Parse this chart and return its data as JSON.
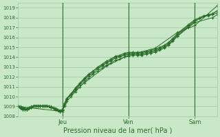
{
  "xlabel": "Pression niveau de la mer( hPa )",
  "bg_color": "#c8e8c8",
  "grid_color": "#a0c8a0",
  "line_color": "#2a6c2a",
  "ylim": [
    1008,
    1019.5
  ],
  "yticks": [
    1008,
    1009,
    1010,
    1011,
    1012,
    1013,
    1014,
    1015,
    1016,
    1017,
    1018,
    1019
  ],
  "vline_x": [
    0.222,
    0.555,
    0.888
  ],
  "figsize": [
    3.2,
    2.0
  ],
  "dpi": 100,
  "series": [
    {
      "x": [
        0.0,
        0.011,
        0.022,
        0.033,
        0.044,
        0.055,
        0.066,
        0.078,
        0.089,
        0.1,
        0.111,
        0.122,
        0.133,
        0.144,
        0.155,
        0.166,
        0.177,
        0.188,
        0.2,
        0.211,
        0.222,
        0.233,
        0.244,
        0.266,
        0.288,
        0.311,
        0.333,
        0.355,
        0.377,
        0.4,
        0.422,
        0.444,
        0.466,
        0.488,
        0.511,
        0.533,
        0.555,
        0.577,
        0.6,
        0.622,
        0.644,
        0.666,
        0.688,
        0.711,
        0.733,
        0.755,
        0.777,
        0.8,
        0.855,
        0.888,
        0.911,
        0.933,
        0.955,
        0.977,
        1.0
      ],
      "y": [
        1009.0,
        1008.9,
        1008.8,
        1008.7,
        1008.7,
        1008.8,
        1008.9,
        1009.0,
        1009.0,
        1009.0,
        1009.0,
        1009.0,
        1009.0,
        1009.0,
        1009.0,
        1008.9,
        1008.8,
        1008.7,
        1008.6,
        1008.5,
        1008.6,
        1009.2,
        1009.7,
        1010.2,
        1010.7,
        1011.2,
        1011.7,
        1012.1,
        1012.4,
        1012.8,
        1013.1,
        1013.4,
        1013.6,
        1013.9,
        1014.0,
        1014.2,
        1014.3,
        1014.3,
        1014.3,
        1014.3,
        1014.4,
        1014.5,
        1014.6,
        1014.8,
        1015.0,
        1015.3,
        1015.7,
        1016.2,
        1017.1,
        1017.6,
        1017.9,
        1018.1,
        1018.2,
        1018.3,
        1018.5
      ]
    },
    {
      "x": [
        0.0,
        0.011,
        0.022,
        0.033,
        0.044,
        0.055,
        0.066,
        0.078,
        0.089,
        0.1,
        0.111,
        0.122,
        0.133,
        0.144,
        0.155,
        0.166,
        0.177,
        0.188,
        0.2,
        0.211,
        0.222,
        0.233,
        0.244,
        0.266,
        0.288,
        0.311,
        0.333,
        0.355,
        0.377,
        0.4,
        0.422,
        0.444,
        0.466,
        0.488,
        0.511,
        0.533,
        0.555,
        0.577,
        0.6,
        0.622,
        0.644,
        0.666,
        0.688,
        0.711,
        0.733,
        0.755,
        0.777,
        0.8,
        0.855,
        0.888,
        0.911,
        0.933,
        0.955,
        0.977,
        1.0
      ],
      "y": [
        1009.1,
        1009.0,
        1008.9,
        1008.8,
        1008.8,
        1008.9,
        1009.0,
        1009.1,
        1009.1,
        1009.1,
        1009.1,
        1009.1,
        1009.1,
        1009.1,
        1009.0,
        1009.0,
        1008.9,
        1008.8,
        1008.7,
        1008.6,
        1008.7,
        1009.3,
        1009.8,
        1010.3,
        1010.8,
        1011.3,
        1011.8,
        1012.2,
        1012.6,
        1012.9,
        1013.2,
        1013.5,
        1013.7,
        1014.0,
        1014.1,
        1014.3,
        1014.4,
        1014.4,
        1014.4,
        1014.4,
        1014.5,
        1014.6,
        1014.7,
        1014.9,
        1015.1,
        1015.4,
        1015.8,
        1016.3,
        1017.2,
        1017.7,
        1018.0,
        1018.2,
        1018.3,
        1018.4,
        1018.7
      ]
    },
    {
      "x": [
        0.0,
        0.011,
        0.022,
        0.033,
        0.044,
        0.055,
        0.066,
        0.078,
        0.089,
        0.1,
        0.111,
        0.122,
        0.133,
        0.144,
        0.155,
        0.166,
        0.177,
        0.188,
        0.2,
        0.211,
        0.222,
        0.233,
        0.244,
        0.266,
        0.288,
        0.311,
        0.333,
        0.355,
        0.377,
        0.4,
        0.422,
        0.444,
        0.466,
        0.488,
        0.511,
        0.533,
        0.555,
        0.577,
        0.6,
        0.622,
        0.644,
        0.666,
        0.688,
        0.711,
        0.733,
        0.755,
        0.777,
        0.8,
        0.855,
        0.888,
        0.977,
        1.0
      ],
      "y": [
        1009.0,
        1008.8,
        1008.7,
        1008.7,
        1008.7,
        1008.8,
        1008.9,
        1009.0,
        1009.0,
        1009.0,
        1009.0,
        1009.0,
        1009.0,
        1009.0,
        1009.0,
        1008.9,
        1008.8,
        1008.7,
        1008.6,
        1008.5,
        1008.6,
        1009.0,
        1009.5,
        1010.0,
        1010.5,
        1011.0,
        1011.5,
        1011.9,
        1012.3,
        1012.6,
        1012.9,
        1013.2,
        1013.4,
        1013.7,
        1013.8,
        1014.0,
        1014.1,
        1014.2,
        1014.2,
        1014.2,
        1014.3,
        1014.4,
        1014.5,
        1014.7,
        1014.9,
        1015.2,
        1015.6,
        1016.1,
        1017.0,
        1017.5,
        1018.0,
        1018.3
      ]
    },
    {
      "x": [
        0.0,
        0.011,
        0.022,
        0.033,
        0.044,
        0.055,
        0.066,
        0.078,
        0.089,
        0.1,
        0.111,
        0.122,
        0.133,
        0.144,
        0.155,
        0.166,
        0.177,
        0.188,
        0.2,
        0.211,
        0.222,
        0.233,
        0.244,
        0.266,
        0.288,
        0.311,
        0.333,
        0.355,
        0.377,
        0.4,
        0.422,
        0.444,
        0.466,
        0.488,
        0.511,
        0.533,
        0.555,
        0.577,
        0.6,
        0.622,
        0.644,
        0.666,
        0.688,
        0.711,
        0.733,
        0.755,
        0.777,
        0.8,
        0.855,
        0.888,
        0.977,
        1.0
      ],
      "y": [
        1009.0,
        1008.8,
        1008.7,
        1008.7,
        1008.7,
        1008.8,
        1008.9,
        1009.0,
        1009.0,
        1009.0,
        1009.0,
        1009.0,
        1009.0,
        1009.0,
        1009.0,
        1008.9,
        1008.8,
        1008.7,
        1008.6,
        1008.5,
        1008.7,
        1009.3,
        1009.8,
        1010.3,
        1010.9,
        1011.4,
        1011.9,
        1012.3,
        1012.6,
        1013.0,
        1013.3,
        1013.6,
        1013.8,
        1014.1,
        1014.2,
        1014.4,
        1014.5,
        1014.5,
        1014.5,
        1014.5,
        1014.6,
        1014.7,
        1014.8,
        1015.0,
        1015.2,
        1015.5,
        1015.9,
        1016.4,
        1017.3,
        1017.8,
        1018.4,
        1018.7
      ]
    },
    {
      "x": [
        0.0,
        0.222,
        0.244,
        0.333,
        0.444,
        0.555,
        0.688,
        0.8,
        0.888,
        1.0
      ],
      "y": [
        1009.0,
        1008.5,
        1009.8,
        1011.4,
        1013.1,
        1014.2,
        1014.9,
        1016.5,
        1017.2,
        1019.2
      ]
    }
  ]
}
